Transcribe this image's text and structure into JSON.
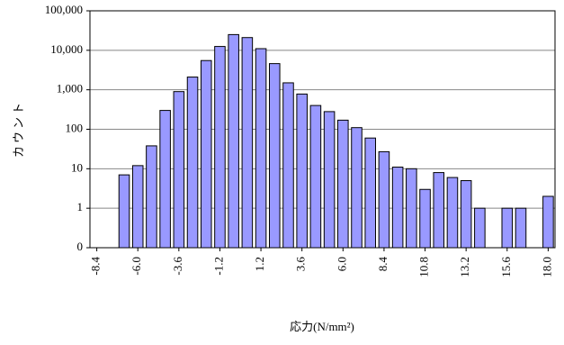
{
  "chart_data": {
    "type": "bar",
    "log_scale": true,
    "grid": true,
    "color": "#9999ff",
    "x_label": "応力(N/mm²)",
    "y_label": "カウント",
    "categories": [
      "-8.4",
      null,
      null,
      "-6.0",
      null,
      null,
      "-3.6",
      null,
      null,
      "-1.2",
      null,
      null,
      "1.2",
      null,
      null,
      "3.6",
      null,
      null,
      "6.0",
      null,
      null,
      "8.4",
      null,
      null,
      "10.8",
      null,
      null,
      "13.2",
      null,
      null,
      "15.6",
      null,
      null,
      "18.0"
    ],
    "values": [
      0,
      0,
      7,
      12,
      38,
      300,
      900,
      2100,
      5500,
      12500,
      25000,
      21000,
      11000,
      4600,
      1500,
      780,
      400,
      280,
      170,
      110,
      60,
      27,
      11,
      10,
      3,
      8,
      6,
      5,
      1,
      0,
      1,
      1,
      0,
      2
    ],
    "ylim": [
      0.1,
      100000
    ],
    "yticks": [
      {
        "value": 0.1,
        "label": "0"
      },
      1,
      10,
      100,
      {
        "value": 1000,
        "label": "1,000"
      },
      {
        "value": 10000,
        "label": "10,000"
      },
      {
        "value": 100000,
        "label": "100,000"
      }
    ]
  }
}
